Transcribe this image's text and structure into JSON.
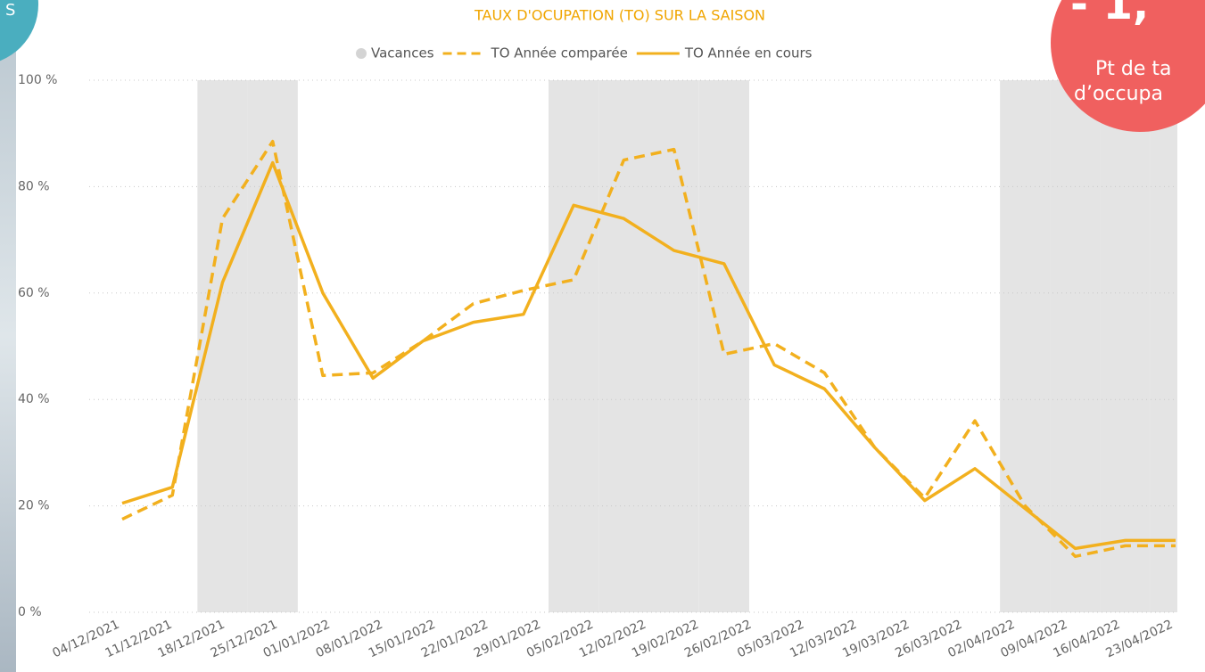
{
  "chart_data": {
    "type": "line",
    "title": "TAUX D'OCUPATION (TO) SUR LA SAISON",
    "categories": [
      "04/12/2021",
      "11/12/2021",
      "18/12/2021",
      "25/12/2021",
      "01/01/2022",
      "08/01/2022",
      "15/01/2022",
      "22/01/2022",
      "29/01/2022",
      "05/02/2022",
      "12/02/2022",
      "19/02/2022",
      "26/02/2022",
      "05/03/2022",
      "12/03/2022",
      "19/03/2022",
      "26/03/2022",
      "02/04/2022",
      null,
      "09/04/2022",
      "16/04/2022",
      "23/04/2022"
    ],
    "series": [
      {
        "name": "Vacances",
        "color": "#e4e4e4",
        "bands": true,
        "values": [
          0,
          0,
          100,
          100,
          0,
          0,
          0,
          0,
          0,
          100,
          100,
          100,
          100,
          0,
          0,
          0,
          0,
          0,
          100,
          100,
          100,
          100
        ]
      },
      {
        "name": "TO Année comparée",
        "color": "#f2b01e",
        "dashed": true,
        "values": [
          17.5,
          22,
          74,
          88.5,
          44.5,
          45,
          51,
          58,
          60.5,
          62.5,
          85,
          87,
          48.5,
          50.5,
          45,
          31,
          21.5,
          36,
          20,
          10.5,
          12.5,
          12.5
        ]
      },
      {
        "name": "TO Année en cours",
        "color": "#f2b01e",
        "dashed": false,
        "values": [
          20.5,
          23.5,
          62,
          84.5,
          60,
          44,
          51,
          54.5,
          56,
          76.5,
          74,
          68,
          65.5,
          46.5,
          42,
          31,
          21,
          27,
          19.5,
          12,
          13.5,
          13.5
        ]
      }
    ],
    "ylim": [
      0,
      100
    ],
    "yticks": [
      {
        "value": 0,
        "label": "0 %"
      },
      {
        "value": 20,
        "label": "20 %"
      },
      {
        "value": 40,
        "label": "40 %"
      },
      {
        "value": 60,
        "label": "60 %"
      },
      {
        "value": 80,
        "label": "80 %"
      },
      {
        "value": 100,
        "label": "100 %"
      }
    ],
    "grid": true
  },
  "badges": {
    "left": "S",
    "right_value": "- 1,",
    "right_line1": "Pt de ta",
    "right_line2": "d’occupa"
  }
}
